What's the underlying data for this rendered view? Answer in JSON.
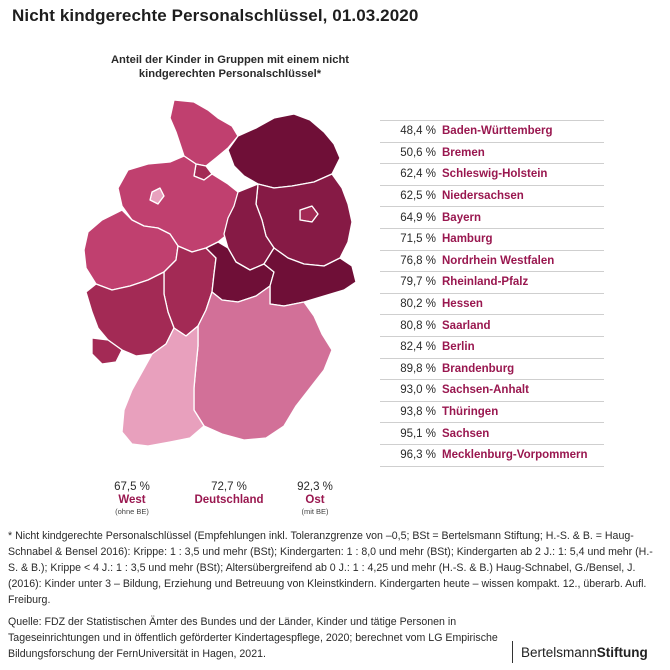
{
  "title": "Nicht kindgerechte Personalschlüssel, 01.03.2020",
  "map_caption": "Anteil der Kinder in Gruppen mit einem nicht kindgerechten Personalschlüssel*",
  "colors": {
    "accent": "#99174f",
    "scale": [
      "#e8a0bd",
      "#d27098",
      "#c0406f",
      "#a32a55",
      "#861a45",
      "#6f0f37"
    ]
  },
  "ranking": [
    {
      "value": "48,4 %",
      "name": "Baden-Württemberg",
      "share": 48.4
    },
    {
      "value": "50,6 %",
      "name": "Bremen",
      "share": 50.6
    },
    {
      "value": "62,4 %",
      "name": "Schleswig-Holstein",
      "share": 62.4
    },
    {
      "value": "62,5 %",
      "name": "Niedersachsen",
      "share": 62.5
    },
    {
      "value": "64,9 %",
      "name": "Bayern",
      "share": 64.9
    },
    {
      "value": "71,5 %",
      "name": "Hamburg",
      "share": 71.5
    },
    {
      "value": "76,8 %",
      "name": "Nordrhein Westfalen",
      "share": 76.8
    },
    {
      "value": "79,7 %",
      "name": "Rheinland-Pfalz",
      "share": 79.7
    },
    {
      "value": "80,2 %",
      "name": "Hessen",
      "share": 80.2
    },
    {
      "value": "80,8 %",
      "name": "Saarland",
      "share": 80.8
    },
    {
      "value": "82,4 %",
      "name": "Berlin",
      "share": 82.4
    },
    {
      "value": "89,8 %",
      "name": "Brandenburg",
      "share": 89.8
    },
    {
      "value": "93,0 %",
      "name": "Sachsen-Anhalt",
      "share": 93.0
    },
    {
      "value": "93,8 %",
      "name": "Thüringen",
      "share": 93.8
    },
    {
      "value": "95,1 %",
      "name": "Sachsen",
      "share": 95.1
    },
    {
      "value": "96,3 %",
      "name": "Mecklenburg-Vorpommern",
      "share": 96.3
    }
  ],
  "summary": {
    "west": {
      "value": "67,5 %",
      "label": "West",
      "note": "(ohne BE)"
    },
    "germany": {
      "value": "72,7 %",
      "label": "Deutschland"
    },
    "east": {
      "value": "92,3 %",
      "label": "Ost",
      "note": "(mit BE)"
    }
  },
  "footnote": "* Nicht kindgerechte Personalschlüssel (Empfehlungen inkl. Toleranzgrenze von –0,5; BSt = Bertelsmann Stiftung; H.-S. & B. = Haug-Schnabel & Bensel 2016): Krippe: 1 : 3,5 und mehr (BSt); Kindergarten: 1 : 8,0 und mehr (BSt); Kindergarten ab 2 J.: 1: 5,4 und mehr (H.-S. & B.); Krippe < 4 J.: 1 : 3,5 und mehr (BSt); Altersübergreifend ab 0 J.: 1 : 4,25 und mehr (H.-S. & B.) Haug-Schnabel, G./Bensel, J. (2016): Kinder unter 3 – Bildung, Erziehung und Betreuung von Kleinstkindern. Kindergarten heute – wissen kompakt. 12., überarb. Aufl. Freiburg.",
  "source": "Quelle: FDZ der Statistischen Ämter des Bundes und der Länder, Kinder und tätige Personen in Tageseinrichtungen und in öffentlich geförderter Kindertagespflege, 2020; berechnet vom LG Empirische Bildungsforschung der FernUniversität in Hagen, 2021.",
  "logo": {
    "part1": "Bertelsmann",
    "part2": "Stiftung"
  }
}
